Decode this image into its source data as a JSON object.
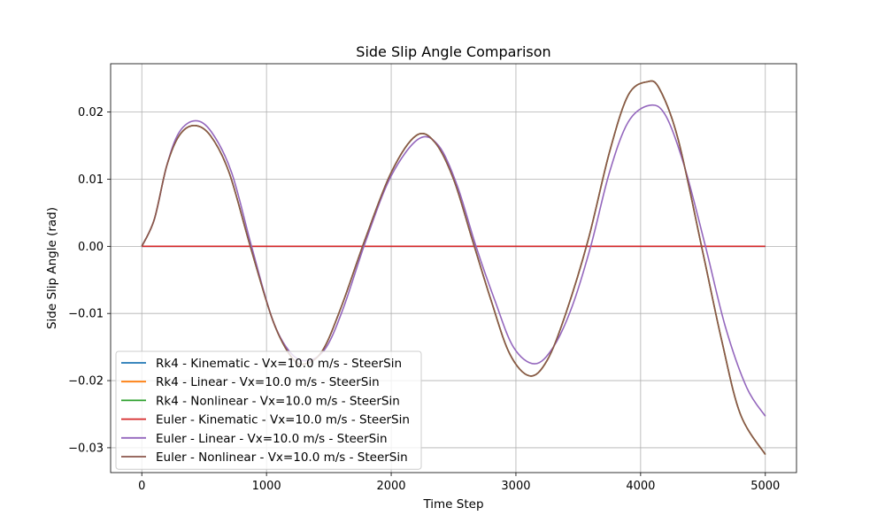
{
  "chart_data": {
    "type": "line",
    "title": "Side Slip Angle Comparison",
    "xlabel": "Time Step",
    "ylabel": "Side Slip Angle (rad)",
    "xlim": [
      -250,
      5250
    ],
    "ylim": [
      -0.0337,
      0.0272
    ],
    "xticks": [
      0,
      1000,
      2000,
      3000,
      4000,
      5000
    ],
    "yticks": [
      0.02,
      0.01,
      0.0,
      -0.01,
      -0.02,
      -0.03
    ],
    "xtick_labels": [
      "0",
      "1000",
      "2000",
      "3000",
      "4000",
      "5000"
    ],
    "ytick_labels": [
      "0.02",
      "0.01",
      "0.00",
      "−0.01",
      "−0.02",
      "−0.03"
    ],
    "grid": true,
    "legend_position": "lower-left",
    "series": [
      {
        "name": "Rk4 - Kinematic - Vx=10.0 m/s - SteerSin",
        "color": "#1f77b4",
        "x": [
          0,
          5000
        ],
        "y": [
          0.0,
          0.0
        ]
      },
      {
        "name": "Rk4 - Linear - Vx=10.0 m/s - SteerSin",
        "color": "#ff7f0e",
        "x": [
          0,
          100,
          200,
          300,
          420,
          550,
          700,
          870,
          1050,
          1200,
          1310,
          1450,
          1600,
          1790,
          2000,
          2200,
          2350,
          2500,
          2650,
          2800,
          2950,
          3110,
          3250,
          3400,
          3580,
          3750,
          3900,
          4050,
          4150,
          4300,
          4500,
          4650,
          4800,
          5000
        ],
        "y": [
          0.0,
          0.004,
          0.012,
          0.0165,
          0.018,
          0.0165,
          0.011,
          0.0,
          -0.011,
          -0.0165,
          -0.0175,
          -0.0155,
          -0.009,
          0.001,
          0.011,
          0.0165,
          0.0155,
          0.01,
          0.001,
          -0.008,
          -0.016,
          -0.0193,
          -0.017,
          -0.01,
          0.001,
          0.014,
          0.0225,
          0.0245,
          0.0235,
          0.016,
          -0.001,
          -0.014,
          -0.025,
          -0.031
        ]
      },
      {
        "name": "Rk4 - Nonlinear - Vx=10.0 m/s - SteerSin",
        "color": "#2ca02c",
        "x": [
          0,
          100,
          200,
          300,
          420,
          550,
          700,
          870,
          1050,
          1200,
          1310,
          1450,
          1600,
          1790,
          2000,
          2200,
          2350,
          2500,
          2650,
          2800,
          2950,
          3110,
          3250,
          3400,
          3580,
          3750,
          3900,
          4050,
          4150,
          4300,
          4500,
          4650,
          4800,
          5000
        ],
        "y": [
          0.0,
          0.004,
          0.012,
          0.0165,
          0.018,
          0.0165,
          0.011,
          0.0,
          -0.011,
          -0.0165,
          -0.0175,
          -0.0155,
          -0.009,
          0.001,
          0.011,
          0.0165,
          0.0155,
          0.01,
          0.001,
          -0.008,
          -0.016,
          -0.0193,
          -0.017,
          -0.01,
          0.001,
          0.014,
          0.0225,
          0.0245,
          0.0235,
          0.016,
          -0.001,
          -0.014,
          -0.025,
          -0.031
        ]
      },
      {
        "name": "Euler - Kinematic - Vx=10.0 m/s - SteerSin",
        "color": "#d62728",
        "x": [
          0,
          5000
        ],
        "y": [
          0.0,
          0.0
        ]
      },
      {
        "name": "Euler - Linear - Vx=10.0 m/s - SteerSin",
        "color": "#9467bd",
        "x": [
          0,
          100,
          200,
          300,
          430,
          560,
          720,
          880,
          1050,
          1200,
          1340,
          1480,
          1620,
          1800,
          2000,
          2220,
          2380,
          2530,
          2680,
          2830,
          2980,
          3150,
          3300,
          3450,
          3600,
          3750,
          3900,
          4070,
          4200,
          4350,
          4520,
          4680,
          4850,
          5000
        ],
        "y": [
          0.0,
          0.004,
          0.012,
          0.017,
          0.0187,
          0.017,
          0.011,
          0.0,
          -0.011,
          -0.016,
          -0.017,
          -0.015,
          -0.009,
          0.001,
          0.0105,
          0.016,
          0.015,
          0.009,
          0.0,
          -0.008,
          -0.015,
          -0.0175,
          -0.015,
          -0.009,
          0.0,
          0.011,
          0.0185,
          0.021,
          0.0195,
          0.012,
          0.0,
          -0.012,
          -0.021,
          -0.0253
        ]
      },
      {
        "name": "Euler - Nonlinear - Vx=10.0 m/s - SteerSin",
        "color": "#8c564b",
        "x": [
          0,
          100,
          200,
          300,
          420,
          550,
          700,
          870,
          1050,
          1200,
          1310,
          1450,
          1600,
          1790,
          2000,
          2200,
          2350,
          2500,
          2650,
          2800,
          2950,
          3110,
          3250,
          3400,
          3580,
          3750,
          3900,
          4050,
          4150,
          4300,
          4500,
          4650,
          4800,
          5000
        ],
        "y": [
          0.0,
          0.004,
          0.012,
          0.0165,
          0.018,
          0.0165,
          0.011,
          0.0,
          -0.011,
          -0.0165,
          -0.0175,
          -0.0155,
          -0.009,
          0.001,
          0.011,
          0.0165,
          0.0155,
          0.01,
          0.001,
          -0.008,
          -0.016,
          -0.0193,
          -0.017,
          -0.01,
          0.001,
          0.014,
          0.0225,
          0.0245,
          0.0235,
          0.016,
          -0.001,
          -0.014,
          -0.025,
          -0.031
        ]
      }
    ]
  }
}
